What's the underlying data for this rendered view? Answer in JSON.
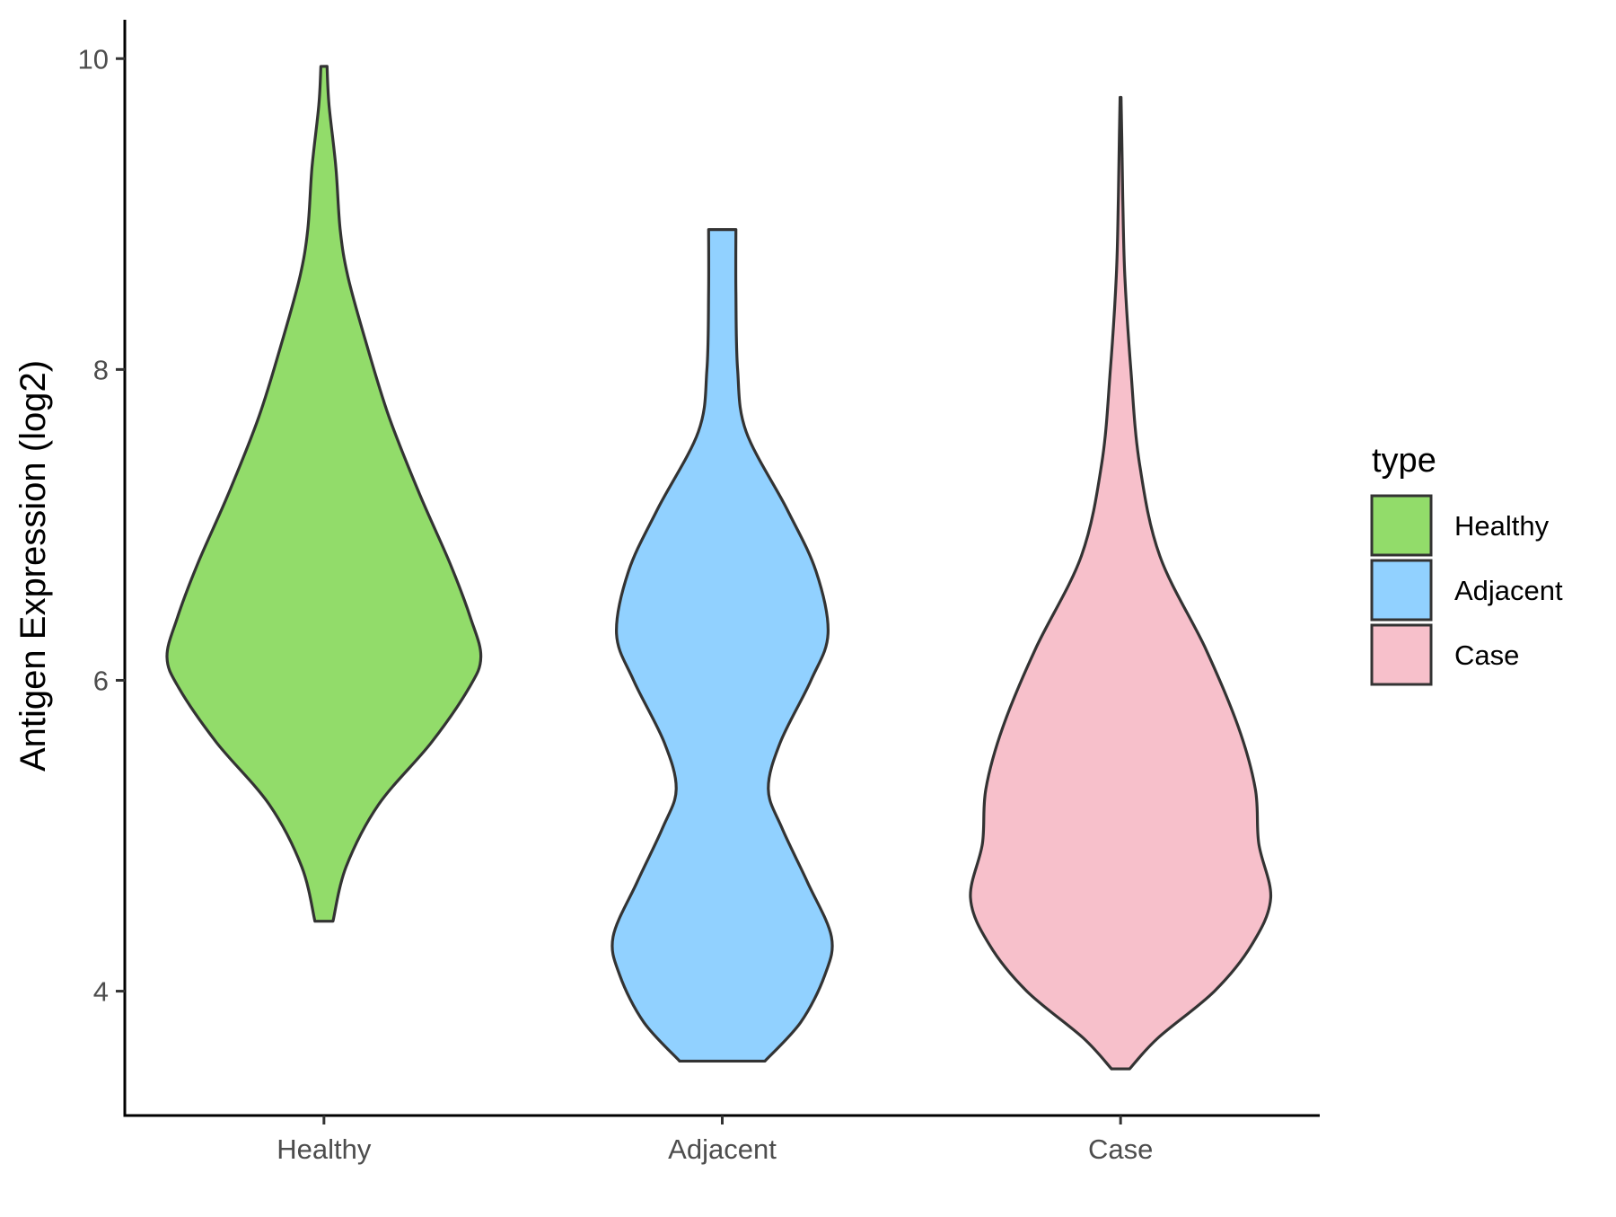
{
  "chart_data": {
    "type": "violin",
    "title": "",
    "xlabel": "",
    "ylabel": "Antigen Expression (log2)",
    "ylim": [
      3.2,
      10.25
    ],
    "yticks": [
      4,
      6,
      8,
      10
    ],
    "categories": [
      "Healthy",
      "Adjacent",
      "Case"
    ],
    "grid": false,
    "legend": {
      "title": "type",
      "position": "right",
      "entries": [
        {
          "label": "Healthy",
          "color": "#92DC6A"
        },
        {
          "label": "Adjacent",
          "color": "#91D1FF"
        },
        {
          "label": "Case",
          "color": "#F7C0CB"
        }
      ]
    },
    "series": [
      {
        "category": "Healthy",
        "color": "#92DC6A",
        "min": 4.45,
        "max": 9.95,
        "density": [
          [
            4.45,
            0.053
          ],
          [
            4.8,
            0.13
          ],
          [
            5.2,
            0.32
          ],
          [
            5.6,
            0.63
          ],
          [
            5.95,
            0.85
          ],
          [
            6.15,
            0.92
          ],
          [
            6.4,
            0.86
          ],
          [
            6.75,
            0.74
          ],
          [
            7.2,
            0.56
          ],
          [
            7.7,
            0.38
          ],
          [
            8.2,
            0.24
          ],
          [
            8.6,
            0.14
          ],
          [
            8.9,
            0.095
          ],
          [
            9.3,
            0.07
          ],
          [
            9.7,
            0.03
          ],
          [
            9.95,
            0.018
          ]
        ]
      },
      {
        "category": "Adjacent",
        "color": "#91D1FF",
        "min": 3.55,
        "max": 8.9,
        "density": [
          [
            3.55,
            0.25
          ],
          [
            3.8,
            0.46
          ],
          [
            4.1,
            0.6
          ],
          [
            4.35,
            0.64
          ],
          [
            4.7,
            0.5
          ],
          [
            5.05,
            0.35
          ],
          [
            5.3,
            0.27
          ],
          [
            5.6,
            0.34
          ],
          [
            6.0,
            0.52
          ],
          [
            6.3,
            0.62
          ],
          [
            6.7,
            0.55
          ],
          [
            7.1,
            0.38
          ],
          [
            7.6,
            0.14
          ],
          [
            8.0,
            0.09
          ],
          [
            8.5,
            0.08
          ],
          [
            8.9,
            0.08
          ]
        ]
      },
      {
        "category": "Case",
        "color": "#F7C0CB",
        "min": 3.5,
        "max": 9.75,
        "density": [
          [
            3.5,
            0.053
          ],
          [
            3.7,
            0.22
          ],
          [
            4.0,
            0.55
          ],
          [
            4.3,
            0.77
          ],
          [
            4.6,
            0.88
          ],
          [
            4.95,
            0.81
          ],
          [
            5.3,
            0.79
          ],
          [
            5.7,
            0.69
          ],
          [
            6.2,
            0.5
          ],
          [
            6.8,
            0.23
          ],
          [
            7.4,
            0.11
          ],
          [
            8.0,
            0.06
          ],
          [
            8.6,
            0.025
          ],
          [
            9.1,
            0.013
          ],
          [
            9.5,
            0.007
          ],
          [
            9.75,
            0.003
          ]
        ]
      }
    ]
  }
}
